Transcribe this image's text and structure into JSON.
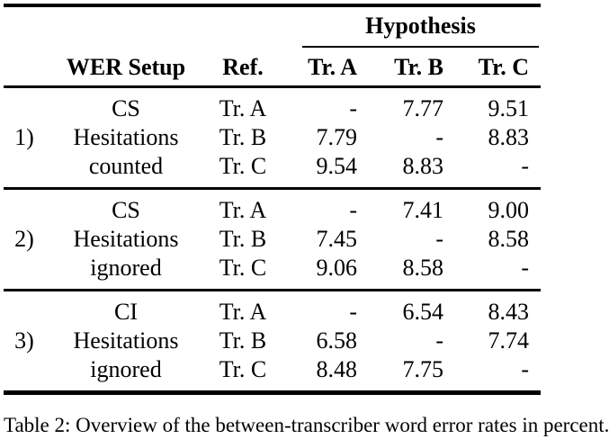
{
  "page": {
    "background": "#ffffff",
    "text_color": "#000000",
    "rule_color": "#000000"
  },
  "table": {
    "hypothesis_header": "Hypothesis",
    "headers": {
      "wer_setup": "WER Setup",
      "ref": "Ref.",
      "tr_a": "Tr. A",
      "tr_b": "Tr. B",
      "tr_c": "Tr. C"
    },
    "groups": [
      {
        "number": "1)",
        "setup": [
          "CS",
          "Hesitations",
          "counted"
        ],
        "rows": [
          {
            "ref": "Tr. A",
            "a": "-",
            "b": "7.77",
            "c": "9.51"
          },
          {
            "ref": "Tr. B",
            "a": "7.79",
            "b": "-",
            "c": "8.83"
          },
          {
            "ref": "Tr. C",
            "a": "9.54",
            "b": "8.83",
            "c": "-"
          }
        ]
      },
      {
        "number": "2)",
        "setup": [
          "CS",
          "Hesitations",
          "ignored"
        ],
        "rows": [
          {
            "ref": "Tr. A",
            "a": "-",
            "b": "7.41",
            "c": "9.00"
          },
          {
            "ref": "Tr. B",
            "a": "7.45",
            "b": "-",
            "c": "8.58"
          },
          {
            "ref": "Tr. C",
            "a": "9.06",
            "b": "8.58",
            "c": "-"
          }
        ]
      },
      {
        "number": "3)",
        "setup": [
          "CI",
          "Hesitations",
          "ignored"
        ],
        "rows": [
          {
            "ref": "Tr. A",
            "a": "-",
            "b": "6.54",
            "c": "8.43"
          },
          {
            "ref": "Tr. B",
            "a": "6.58",
            "b": "-",
            "c": "7.74"
          },
          {
            "ref": "Tr. C",
            "a": "8.48",
            "b": "7.75",
            "c": "-"
          }
        ]
      }
    ]
  },
  "caption": {
    "text": "Table 2: Overview of the between-transcriber word error rates in percent."
  }
}
